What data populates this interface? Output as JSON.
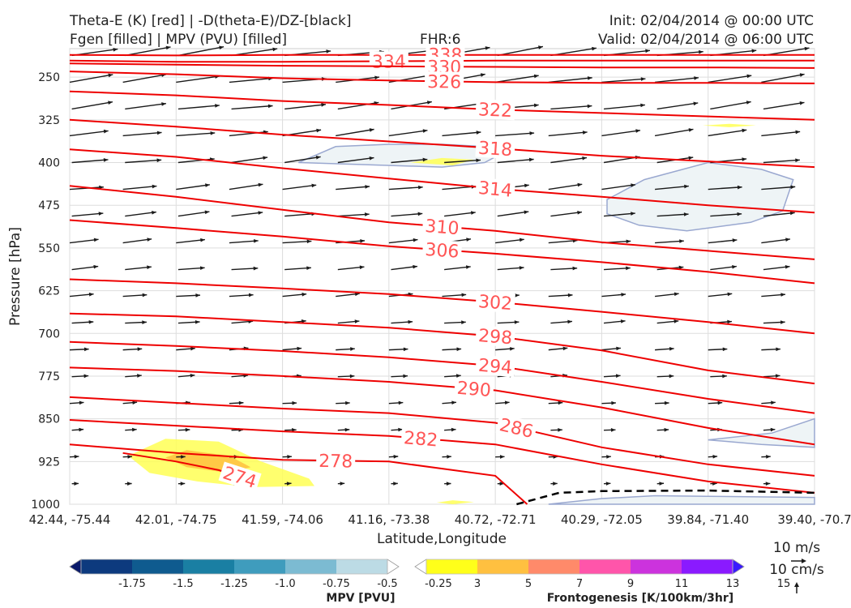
{
  "header": {
    "title_line1": "Theta-E (K) [red] | -D(theta-E)/DZ-[black]",
    "title_line2": "Fgen [filled] | MPV (PVU) [filled]",
    "fhr": "FHR:6",
    "init": "Init: 02/04/2014 @ 00:00 UTC",
    "valid": "Valid: 02/04/2014 @ 06:00 UTC"
  },
  "colors": {
    "theta_e": "#ee0000",
    "theta_e_label": "#ff5555",
    "vectors": "#1a1a1a",
    "mpv_outline": "#9aa8d0",
    "mpv_fill": "#eef4f6",
    "fgen_yellow": "#ffff55",
    "fgen_orange": "#ffc040"
  },
  "chart_data": {
    "type": "cross-section",
    "xlabel": "Latitude,Longitude",
    "ylabel": "Pressure [hPa]",
    "x_ticks": [
      "42.44, -75.44",
      "42.01, -74.75",
      "41.59, -74.06",
      "41.16, -73.38",
      "40.72, -72.71",
      "40.29, -72.05",
      "39.84, -71.40",
      "39.40, -70.7"
    ],
    "y_ticks": [
      250,
      325,
      400,
      475,
      550,
      625,
      700,
      775,
      850,
      925,
      1000
    ],
    "y_range_hpa": [
      200,
      1000
    ],
    "x_range_index": [
      0,
      7
    ],
    "theta_e_contours": [
      {
        "level": 338,
        "label": "338",
        "points": [
          [
            0,
            211
          ],
          [
            1,
            212
          ],
          [
            2,
            211
          ],
          [
            3,
            211
          ],
          [
            4,
            211
          ],
          [
            5,
            211
          ],
          [
            6,
            211
          ],
          [
            7,
            211
          ]
        ],
        "label_at": 3.53
      },
      {
        "level": 334,
        "label": "334",
        "points": [
          [
            0,
            221
          ],
          [
            1,
            223
          ],
          [
            2,
            223
          ],
          [
            3,
            222
          ],
          [
            4,
            221
          ],
          [
            5,
            221
          ],
          [
            6,
            221
          ],
          [
            7,
            221
          ]
        ],
        "label_at": 3.0
      },
      {
        "level": 330,
        "label": "330",
        "points": [
          [
            0,
            226
          ],
          [
            1,
            228
          ],
          [
            2,
            230
          ],
          [
            3,
            231
          ],
          [
            4,
            232
          ],
          [
            5,
            233
          ],
          [
            6,
            233
          ],
          [
            7,
            234
          ]
        ],
        "label_at": 3.52
      },
      {
        "level": 326,
        "label": "326",
        "points": [
          [
            0,
            240
          ],
          [
            1,
            245
          ],
          [
            2,
            252
          ],
          [
            3,
            256
          ],
          [
            4,
            259
          ],
          [
            5,
            260
          ],
          [
            6,
            260
          ],
          [
            7,
            261
          ]
        ],
        "label_at": 3.52
      },
      {
        "level": 322,
        "label": "322",
        "points": [
          [
            0,
            275
          ],
          [
            1,
            282
          ],
          [
            2,
            292
          ],
          [
            3,
            299
          ],
          [
            4,
            307
          ],
          [
            5,
            313
          ],
          [
            6,
            319
          ],
          [
            7,
            325
          ]
        ],
        "label_at": 4.0
      },
      {
        "level": 318,
        "label": "318",
        "points": [
          [
            0,
            325
          ],
          [
            1,
            337
          ],
          [
            2,
            351
          ],
          [
            3,
            363
          ],
          [
            4,
            375
          ],
          [
            5,
            388
          ],
          [
            6,
            398
          ],
          [
            7,
            408
          ]
        ],
        "label_at": 4.0
      },
      {
        "level": 314,
        "label": "314",
        "points": [
          [
            0,
            377
          ],
          [
            1,
            390
          ],
          [
            2,
            410
          ],
          [
            3,
            428
          ],
          [
            4,
            446
          ],
          [
            5,
            460
          ],
          [
            6,
            475
          ],
          [
            7,
            488
          ]
        ],
        "label_at": 4.0
      },
      {
        "level": 310,
        "label": "310",
        "points": [
          [
            0,
            441
          ],
          [
            1,
            460
          ],
          [
            2,
            483
          ],
          [
            3,
            505
          ],
          [
            4,
            520
          ],
          [
            5,
            540
          ],
          [
            6,
            555
          ],
          [
            7,
            570
          ]
        ],
        "label_at": 3.5
      },
      {
        "level": 306,
        "label": "306",
        "points": [
          [
            0,
            501
          ],
          [
            1,
            515
          ],
          [
            2,
            530
          ],
          [
            3,
            547
          ],
          [
            4,
            560
          ],
          [
            5,
            575
          ],
          [
            6,
            592
          ],
          [
            7,
            612
          ]
        ],
        "label_at": 3.5
      },
      {
        "level": 302,
        "label": "302",
        "points": [
          [
            0,
            605
          ],
          [
            1,
            612
          ],
          [
            2,
            621
          ],
          [
            3,
            631
          ],
          [
            4,
            645
          ],
          [
            5,
            662
          ],
          [
            6,
            680
          ],
          [
            7,
            700
          ]
        ],
        "label_at": 4.0
      },
      {
        "level": 298,
        "label": "298",
        "points": [
          [
            0,
            665
          ],
          [
            1,
            670
          ],
          [
            2,
            680
          ],
          [
            3,
            690
          ],
          [
            4,
            705
          ],
          [
            5,
            730
          ],
          [
            6,
            765
          ],
          [
            7,
            788
          ]
        ],
        "label_at": 4.0
      },
      {
        "level": 294,
        "label": "294",
        "points": [
          [
            0,
            715
          ],
          [
            1,
            722
          ],
          [
            2,
            731
          ],
          [
            3,
            742
          ],
          [
            4,
            757
          ],
          [
            5,
            785
          ],
          [
            6,
            815
          ],
          [
            7,
            840
          ]
        ],
        "label_at": 4.0
      },
      {
        "level": 290,
        "label": "290",
        "points": [
          [
            0,
            760
          ],
          [
            1,
            766
          ],
          [
            2,
            775
          ],
          [
            3,
            785
          ],
          [
            4,
            800
          ],
          [
            5,
            830
          ],
          [
            6,
            866
          ],
          [
            7,
            895
          ]
        ],
        "label_at": 3.8
      },
      {
        "level": 286,
        "label": "286",
        "points": [
          [
            0,
            812
          ],
          [
            1,
            822
          ],
          [
            2,
            832
          ],
          [
            3,
            840
          ],
          [
            4,
            857
          ],
          [
            5,
            900
          ],
          [
            6,
            930
          ],
          [
            7,
            950
          ]
        ],
        "label_at": 4.2
      },
      {
        "level": 282,
        "label": "282",
        "points": [
          [
            0,
            852
          ],
          [
            1,
            862
          ],
          [
            2,
            872
          ],
          [
            3,
            880
          ],
          [
            4,
            895
          ],
          [
            5,
            930
          ],
          [
            6,
            960
          ],
          [
            7,
            980
          ]
        ],
        "label_at": 3.3
      },
      {
        "level": 278,
        "label": "278",
        "points": [
          [
            0,
            895
          ],
          [
            1,
            910
          ],
          [
            2,
            922
          ],
          [
            3,
            925
          ],
          [
            4,
            950
          ],
          [
            4.3,
            1000
          ]
        ],
        "label_at": 2.5
      },
      {
        "level": 274,
        "label": "274",
        "points": [
          [
            0.5,
            910
          ],
          [
            1.0,
            925
          ],
          [
            1.4,
            940
          ],
          [
            1.7,
            958
          ]
        ],
        "label_at": 1.6
      }
    ],
    "dashed_boundary": {
      "points": [
        [
          4.2,
          1000
        ],
        [
          4.6,
          980
        ],
        [
          5,
          977
        ],
        [
          6,
          976
        ],
        [
          7,
          980
        ]
      ]
    },
    "mpv_regions": [
      {
        "level": -0.25,
        "points": [
          [
            2.15,
            400
          ],
          [
            2.5,
            372
          ],
          [
            3,
            368
          ],
          [
            3.5,
            368
          ],
          [
            3.9,
            372
          ],
          [
            4.05,
            385
          ],
          [
            3.9,
            400
          ],
          [
            3.5,
            408
          ],
          [
            2.15,
            400
          ]
        ]
      },
      {
        "level": -0.25,
        "points": [
          [
            5.05,
            465
          ],
          [
            5.4,
            430
          ],
          [
            6,
            400
          ],
          [
            6.5,
            412
          ],
          [
            6.8,
            430
          ],
          [
            6.7,
            485
          ],
          [
            6.4,
            505
          ],
          [
            5.8,
            520
          ],
          [
            5.35,
            510
          ],
          [
            5.05,
            490
          ],
          [
            5.05,
            465
          ]
        ]
      },
      {
        "level": -0.25,
        "points": [
          [
            6.0,
            887
          ],
          [
            6.6,
            875
          ],
          [
            7,
            850
          ],
          [
            7,
            900
          ],
          [
            6.5,
            895
          ],
          [
            6.0,
            887
          ]
        ]
      },
      {
        "level": -0.25,
        "points": [
          [
            4.5,
            1000
          ],
          [
            5,
            990
          ],
          [
            5.5,
            985
          ],
          [
            6,
            986
          ],
          [
            7,
            988
          ],
          [
            7,
            1000
          ],
          [
            4.5,
            1000
          ]
        ]
      }
    ],
    "fgen_regions": [
      {
        "level": 3,
        "color": "yellow",
        "points": [
          [
            0.55,
            915
          ],
          [
            0.9,
            885
          ],
          [
            1.4,
            890
          ],
          [
            1.8,
            925
          ],
          [
            2.25,
            955
          ],
          [
            2.3,
            968
          ],
          [
            1.7,
            970
          ],
          [
            1.2,
            960
          ],
          [
            0.75,
            945
          ],
          [
            0.55,
            915
          ]
        ]
      },
      {
        "level": 5,
        "color": "orange",
        "points": [
          [
            0.9,
            918
          ],
          [
            1.1,
            905
          ],
          [
            1.5,
            915
          ],
          [
            1.7,
            935
          ],
          [
            1.5,
            945
          ],
          [
            1.1,
            935
          ],
          [
            0.9,
            918
          ]
        ]
      },
      {
        "level": 3,
        "color": "yellow",
        "points": [
          [
            3.2,
            400
          ],
          [
            3.5,
            392
          ],
          [
            3.8,
            395
          ],
          [
            3.6,
            405
          ],
          [
            3.2,
            400
          ]
        ]
      },
      {
        "level": 3,
        "color": "yellow",
        "points": [
          [
            5.95,
            335
          ],
          [
            6.2,
            332
          ],
          [
            6.45,
            335
          ],
          [
            6.2,
            338
          ],
          [
            5.95,
            335
          ]
        ]
      },
      {
        "level": 3,
        "color": "yellow",
        "points": [
          [
            3.45,
            997
          ],
          [
            3.6,
            993
          ],
          [
            3.8,
            996
          ],
          [
            3.6,
            1000
          ],
          [
            3.45,
            997
          ]
        ]
      }
    ],
    "vectors": {
      "description": "Wind vectors, generally pointing east, longer aloft and decreasing near the surface",
      "ref_speed_label": "10 m/s",
      "ref_omega_label": "10 cm/s"
    },
    "colorbars": [
      {
        "name": "MPV [PVU]",
        "ticks": [
          "-1.75",
          "-1.5",
          "-1.25",
          "-1.0",
          "-0.75",
          "-0.5",
          "-0.25"
        ],
        "colors": [
          "#0a1a6a",
          "#0d3a7e",
          "#0f5b8f",
          "#1a7fa3",
          "#3f9cbd",
          "#7cbbd2",
          "#bcdbe5",
          "#ffffff"
        ]
      },
      {
        "name": "Frontogenesis [K/100km/3hr]",
        "ticks": [
          "3",
          "5",
          "7",
          "9",
          "11",
          "13",
          "15"
        ],
        "colors": [
          "#ffffff",
          "#ffff1a",
          "#ffc040",
          "#ff8a6a",
          "#ff55aa",
          "#cc33dd",
          "#8a1aff",
          "#3a1aff"
        ]
      }
    ]
  }
}
